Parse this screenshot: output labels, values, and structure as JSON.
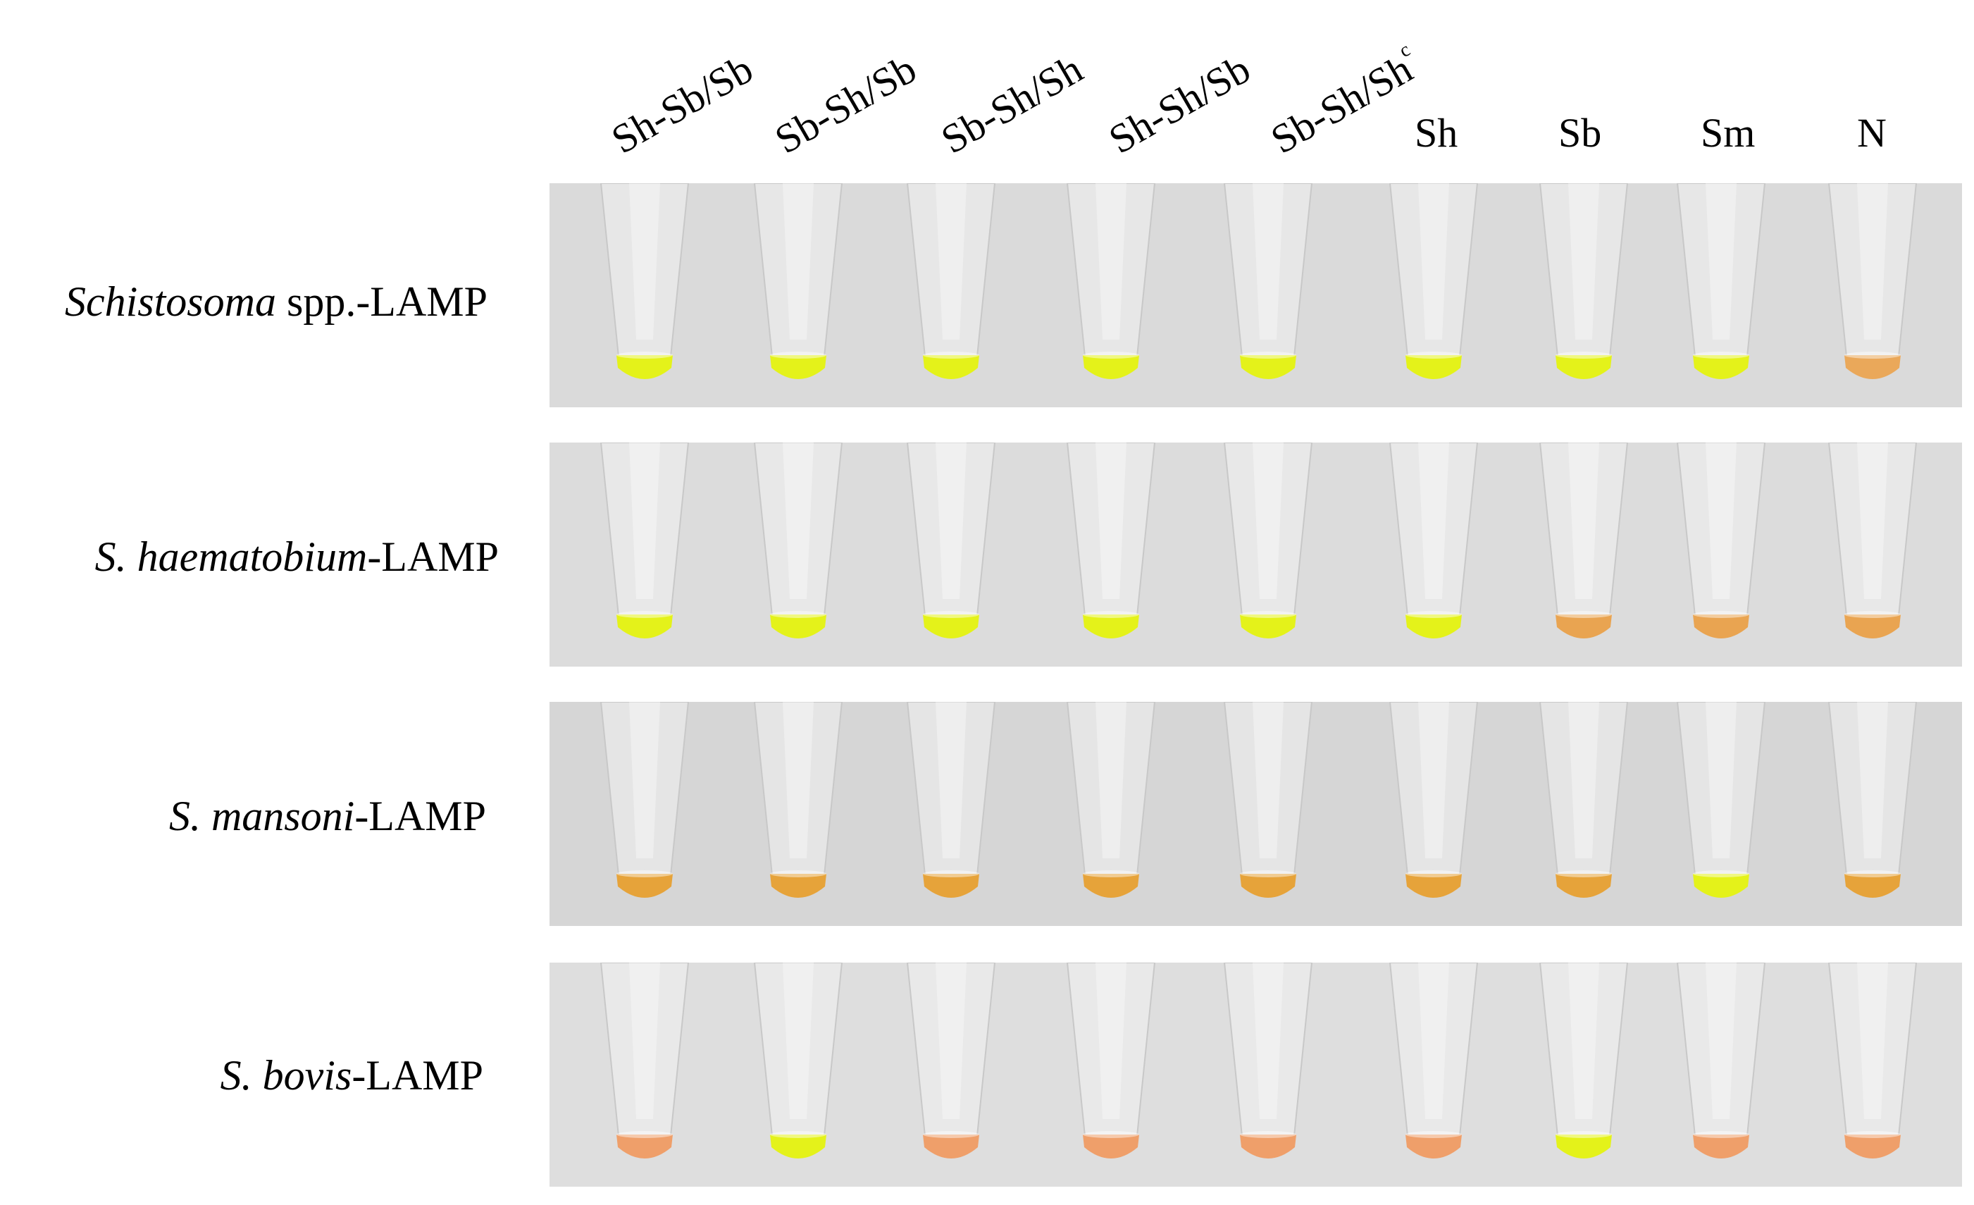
{
  "columns": [
    {
      "main": "Sh-Sb/Sb",
      "sup": ""
    },
    {
      "main": "Sb-Sh/Sb",
      "sup": ""
    },
    {
      "main": "Sb-Sh/Sh",
      "sup": ""
    },
    {
      "main": "Sh-Sh/Sb",
      "sup": ""
    },
    {
      "main": "Sb-Sh/Sh",
      "sup": "c"
    },
    {
      "main": "Sh",
      "sup": ""
    },
    {
      "main": "Sb",
      "sup": ""
    },
    {
      "main": "Sm",
      "sup": ""
    },
    {
      "main": "N",
      "sup": ""
    }
  ],
  "rows": [
    {
      "italic": "Schistosoma",
      "rest": " spp.-LAMP",
      "results": [
        "positive",
        "positive",
        "positive",
        "positive",
        "positive",
        "positive",
        "positive",
        "positive",
        "negative"
      ],
      "bg": "#dadada"
    },
    {
      "italic": "S. haematobium",
      "rest": "-LAMP",
      "results": [
        "positive",
        "positive",
        "positive",
        "positive",
        "positive",
        "positive",
        "negative",
        "negative",
        "negative"
      ],
      "bg": "#dcdcdc"
    },
    {
      "italic": "S. mansoni",
      "rest": "-LAMP",
      "results": [
        "negative",
        "negative",
        "negative",
        "negative",
        "negative",
        "negative",
        "negative",
        "positive",
        "negative"
      ],
      "bg": "#d6d6d6"
    },
    {
      "italic": "S. bovis",
      "rest": "-LAMP",
      "results": [
        "negative",
        "positive",
        "negative",
        "negative",
        "negative",
        "negative",
        "positive",
        "negative",
        "negative"
      ],
      "bg": "#dedede"
    }
  ],
  "colors": {
    "positive": "#e4f21a",
    "negative_row1": "#eaa85a",
    "negative_row2": "#e9a451",
    "negative_row3": "#e6a33a",
    "negative_row4": "#ef9f6a",
    "tube": "#f2f2f2"
  }
}
